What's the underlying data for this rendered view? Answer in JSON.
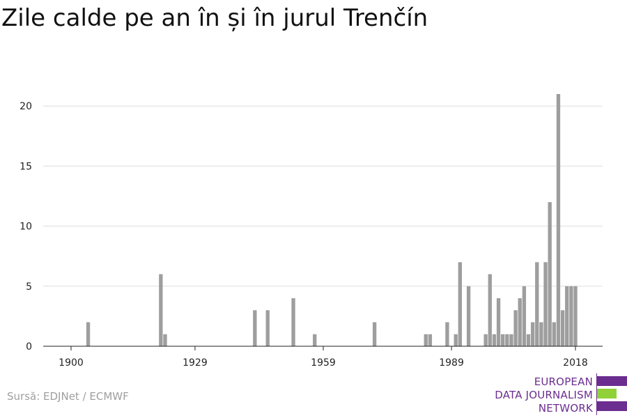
{
  "title": "Zile calde pe an în și în jurul Trenčín",
  "source": "Sursă: EDJNet / ECMWF",
  "logo": {
    "lines": [
      "EUROPEAN",
      "DATA JOURNALISM",
      "NETWORK"
    ],
    "colors": {
      "primary": "#6b2d8f",
      "accent": "#8fd137"
    }
  },
  "colors": {
    "bar": "#9e9e9e",
    "grid": "#dddddd",
    "axis": "#222222",
    "text": "#111111"
  },
  "chart_data": {
    "type": "bar",
    "title": "Zile calde pe an în și în jurul Trenčín",
    "xlabel": "",
    "ylabel": "",
    "xlim": [
      1900,
      2018
    ],
    "ylim": [
      0,
      21
    ],
    "x_ticks": [
      1900,
      1929,
      1959,
      1989,
      2018
    ],
    "y_ticks": [
      0,
      5,
      10,
      15,
      20
    ],
    "grid": true,
    "legend": "none",
    "x": [
      1904,
      1921,
      1922,
      1943,
      1946,
      1952,
      1957,
      1971,
      1983,
      1984,
      1988,
      1990,
      1991,
      1993,
      1997,
      1998,
      1999,
      2000,
      2001,
      2002,
      2003,
      2004,
      2005,
      2006,
      2007,
      2008,
      2009,
      2010,
      2011,
      2012,
      2013,
      2014,
      2015,
      2016,
      2017,
      2018
    ],
    "values": [
      2,
      6,
      1,
      3,
      3,
      4,
      1,
      2,
      1,
      1,
      2,
      1,
      7,
      5,
      1,
      6,
      1,
      4,
      1,
      1,
      1,
      3,
      4,
      5,
      1,
      2,
      7,
      2,
      7,
      12,
      2,
      21,
      3,
      5,
      5,
      5
    ]
  }
}
